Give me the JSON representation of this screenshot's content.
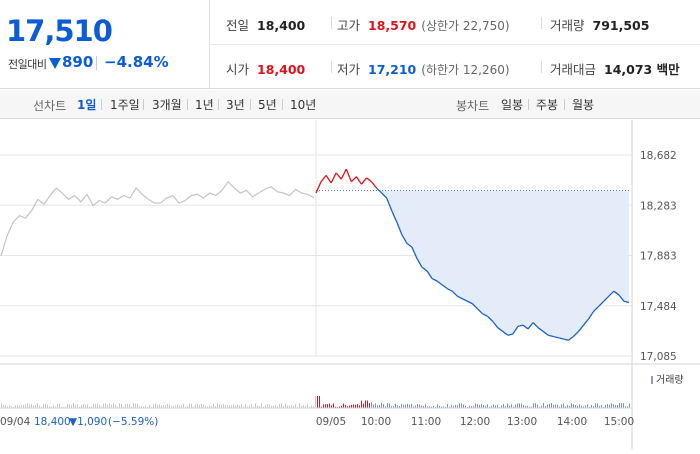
{
  "price": {
    "current": "17,510",
    "change_label": "전일대비",
    "change_abs": "890",
    "change_pct": "−4.84%"
  },
  "stats": {
    "prev_close": {
      "label": "전일",
      "value": "18,400"
    },
    "high": {
      "label": "고가",
      "value": "18,570",
      "sub": "(상한가 22,750)"
    },
    "volume": {
      "label": "거래량",
      "value": "791,505"
    },
    "open": {
      "label": "시가",
      "value": "18,400"
    },
    "low": {
      "label": "저가",
      "value": "17,210",
      "sub": "(하한가 12,260)"
    },
    "amount": {
      "label": "거래대금",
      "value": "14,073 백만"
    }
  },
  "tabs": {
    "line_title": "선차트",
    "line_items": [
      "1일",
      "1주일",
      "3개월",
      "1년",
      "3년",
      "5년",
      "10년"
    ],
    "active": "1일",
    "candle_title": "봉차트",
    "candle_items": [
      "일봉",
      "주봉",
      "월봉"
    ]
  },
  "chart_data": {
    "type": "line",
    "y_ticks": [
      "18,682",
      "18,283",
      "17,883",
      "17,484",
      "17,085"
    ],
    "ylim": [
      17085,
      18682
    ],
    "reference_price": 18400,
    "x_labels": [
      "09/05",
      "10:00",
      "11:00",
      "12:00",
      "13:00",
      "14:00",
      "15:00"
    ],
    "volume_legend": "거래량",
    "prev_day_label": "09/04",
    "prev_day_close": "18,400",
    "prev_day_change": "▼1,090",
    "prev_day_pct": "(−5.59%)",
    "colors": {
      "up": "#e3101b",
      "down": "#1a62c6",
      "prev": "#c4c4c4",
      "fill": "#e4ecf9"
    },
    "series": [
      {
        "values": [
          17880,
          18040,
          18150,
          18200,
          18180,
          18240,
          18330,
          18290,
          18360,
          18420,
          18380,
          18330,
          18360,
          18310,
          18370,
          18280,
          18320,
          18300,
          18350,
          18330,
          18360,
          18340,
          18420,
          18370,
          18330,
          18300,
          18300,
          18340,
          18360,
          18300,
          18320,
          18360,
          18370,
          18340,
          18380,
          18360,
          18400,
          18470,
          18420,
          18380,
          18400,
          18350,
          18380,
          18410,
          18430,
          18390,
          18380,
          18360,
          18410,
          18380,
          18370,
          18340
        ]
      },
      {
        "values": [
          18380,
          18470,
          18520,
          18460,
          18540,
          18490,
          18570,
          18470,
          18510,
          18450,
          18500,
          18470,
          18420,
          18380,
          18340,
          18240,
          18150,
          18050,
          17980,
          17950,
          17860,
          17790,
          17760,
          17700,
          17680,
          17650,
          17620,
          17600,
          17560,
          17540,
          17520,
          17500,
          17460,
          17420,
          17400,
          17360,
          17310,
          17280,
          17250,
          17260,
          17320,
          17330,
          17300,
          17350,
          17310,
          17280,
          17250,
          17240,
          17230,
          17220,
          17210,
          17240,
          17280,
          17330,
          17380,
          17440,
          17480,
          17520,
          17560,
          17600,
          17570,
          17520,
          17510
        ]
      }
    ]
  }
}
